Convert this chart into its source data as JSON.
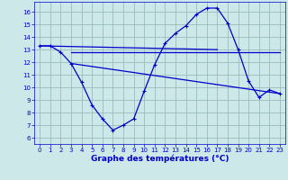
{
  "title": "Graphe des températures (°C)",
  "bg_color": "#cce8e8",
  "line_color": "#0000cc",
  "grid_color": "#99bbbb",
  "xlim": [
    -0.5,
    23.5
  ],
  "ylim": [
    5.5,
    16.8
  ],
  "yticks": [
    6,
    7,
    8,
    9,
    10,
    11,
    12,
    13,
    14,
    15,
    16
  ],
  "xticks": [
    0,
    1,
    2,
    3,
    4,
    5,
    6,
    7,
    8,
    9,
    10,
    11,
    12,
    13,
    14,
    15,
    16,
    17,
    18,
    19,
    20,
    21,
    22,
    23
  ],
  "series": [
    {
      "x": [
        0,
        1,
        2,
        3,
        4,
        5,
        6,
        7,
        8,
        9,
        10,
        11,
        12,
        13,
        14,
        15,
        16,
        17,
        18,
        19,
        20,
        21,
        22,
        23
      ],
      "y": [
        13.3,
        13.3,
        12.8,
        11.9,
        10.4,
        8.6,
        7.5,
        6.6,
        7.0,
        7.5,
        9.7,
        11.8,
        13.5,
        14.3,
        14.9,
        15.8,
        16.3,
        16.3,
        15.1,
        13.0,
        10.5,
        9.2,
        9.8,
        9.5
      ]
    },
    {
      "x": [
        0,
        17
      ],
      "y": [
        13.3,
        13.0
      ]
    },
    {
      "x": [
        3,
        23
      ],
      "y": [
        12.8,
        12.8
      ]
    },
    {
      "x": [
        3,
        23
      ],
      "y": [
        11.9,
        9.5
      ]
    }
  ],
  "marker": "+",
  "markersize": 3.5,
  "linewidth": 0.9,
  "tick_fontsize": 5,
  "xlabel_fontsize": 6.5
}
